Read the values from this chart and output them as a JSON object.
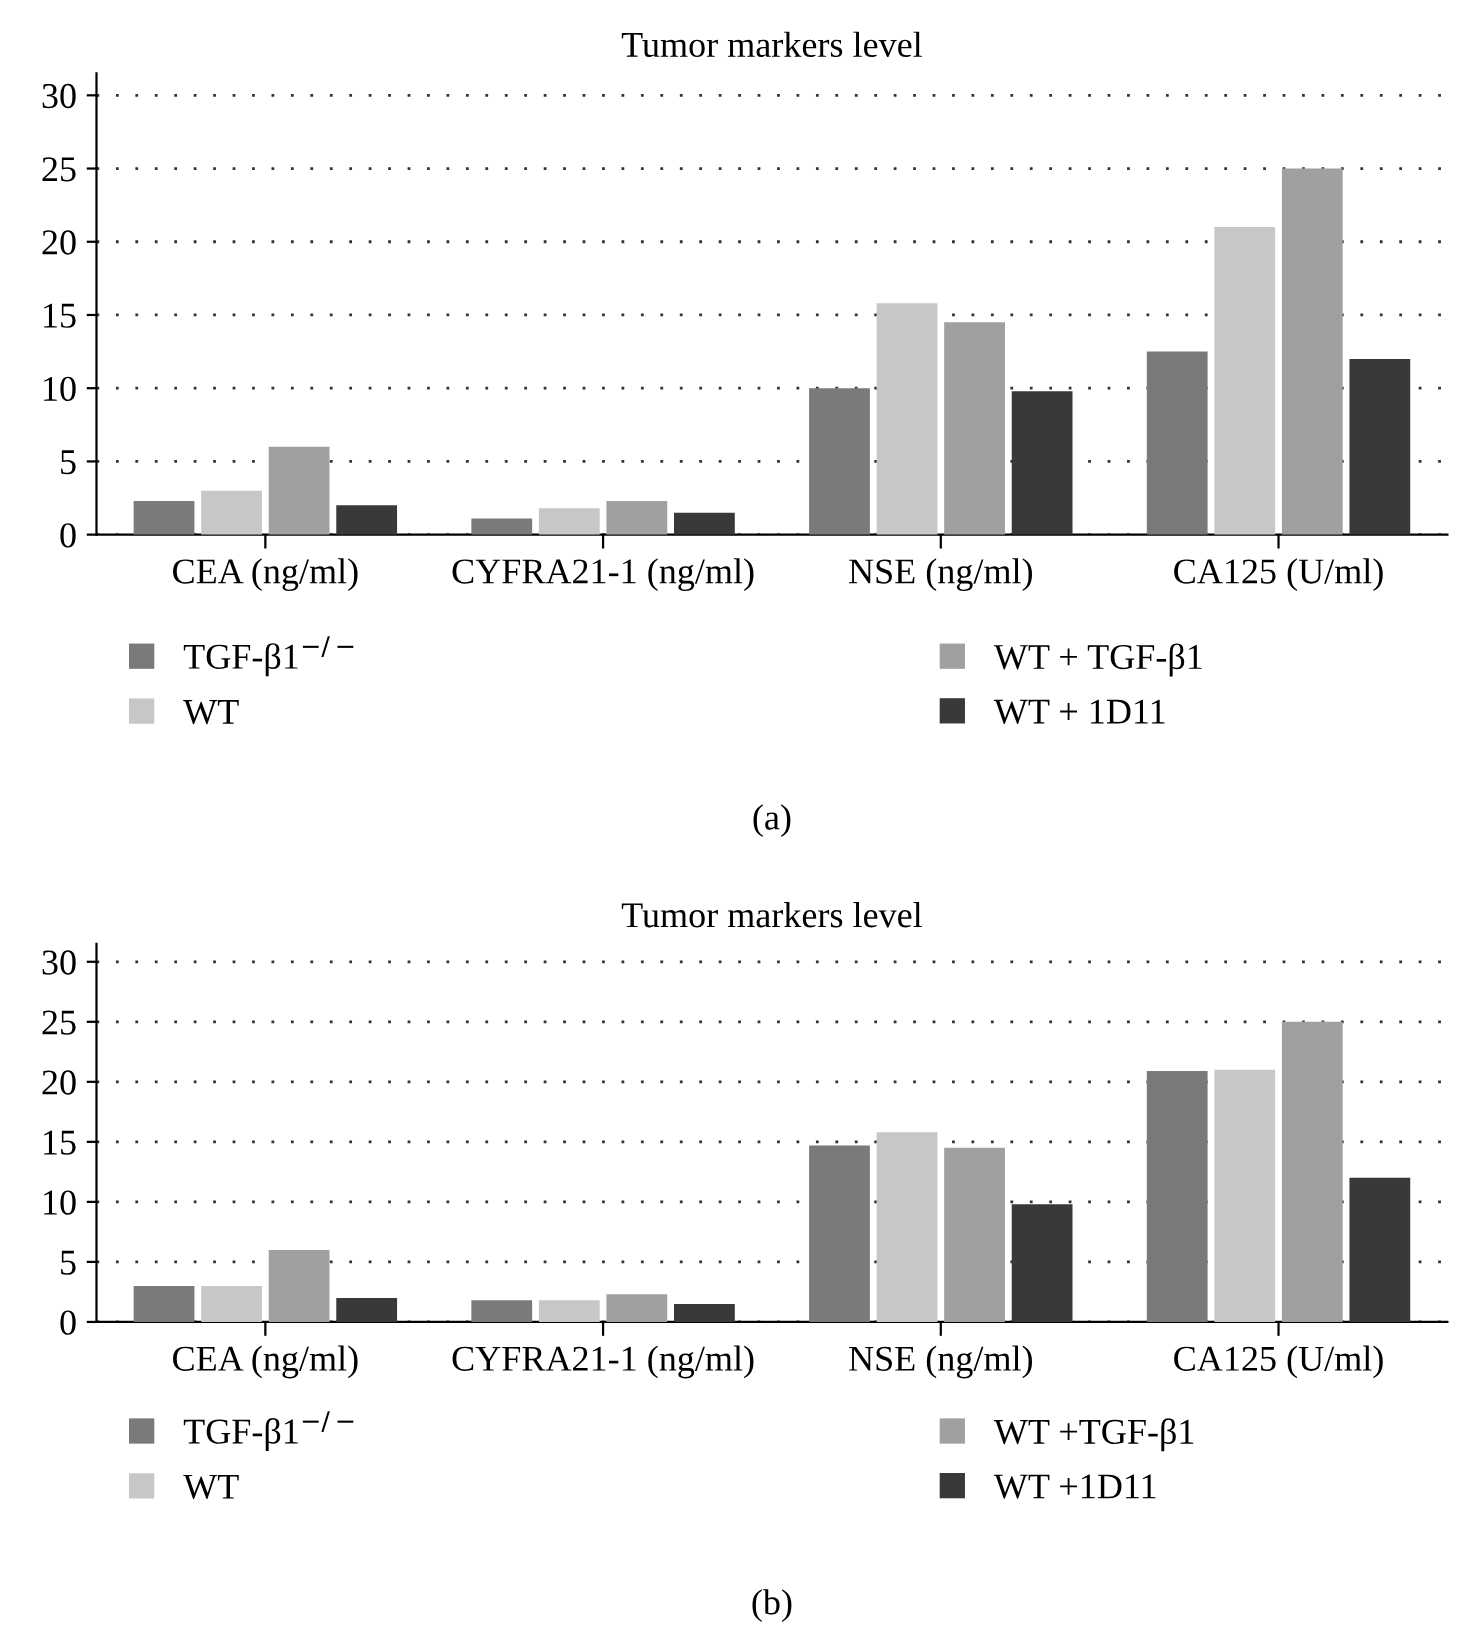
{
  "chart_data": [
    {
      "type": "bar",
      "title": "Tumor markers level",
      "categories": [
        "CEA (ng/ml)",
        "CYFRA21-1 (ng/ml)",
        "NSE (ng/ml)",
        "CA125 (U/ml)"
      ],
      "series": [
        {
          "name": "TGF-β1$^{−/−}$",
          "color": "#7a7a7a",
          "values": [
            2.3,
            1.1,
            10.0,
            12.5
          ]
        },
        {
          "name": "WT",
          "color": "#c6c7c6",
          "values": [
            3.0,
            1.8,
            15.8,
            21.0
          ]
        },
        {
          "name": "WT + TGF-β1",
          "color": "#a0a0a0",
          "values": [
            6.0,
            2.3,
            14.5,
            25.0
          ]
        },
        {
          "name": "WT + 1D11",
          "color": "#393939",
          "values": [
            2.0,
            1.5,
            9.8,
            12.0
          ]
        }
      ],
      "ylim": [
        0,
        31.5
      ],
      "yticks": [
        0,
        5,
        10,
        15,
        20,
        25,
        30
      ],
      "grid": "y",
      "legend": "bottom",
      "annotations": [
        "(a)"
      ]
    },
    {
      "type": "bar",
      "title": "Tumor markers level",
      "categories": [
        "CEA (ng/ml)",
        "CYFRA21-1 (ng/ml)",
        "NSE (ng/ml)",
        "CA125 (U/ml)"
      ],
      "series": [
        {
          "name": "TGF-β1$^{−/−}$",
          "color": "#7a7a7a",
          "values": [
            3.0,
            1.8,
            14.7,
            20.9
          ]
        },
        {
          "name": "WT",
          "color": "#c6c7c6",
          "values": [
            3.0,
            1.8,
            15.8,
            21.0
          ]
        },
        {
          "name": "WT +TGF-β1",
          "color": "#a0a0a0",
          "values": [
            6.0,
            2.3,
            14.5,
            25.0
          ]
        },
        {
          "name": "WT +1D11",
          "color": "#393939",
          "values": [
            2.0,
            1.5,
            9.8,
            12.0
          ]
        }
      ],
      "ylim": [
        0,
        31.5
      ],
      "yticks": [
        0,
        5,
        10,
        15,
        20,
        25,
        30
      ],
      "grid": "y",
      "legend": "bottom",
      "annotations": [
        "(b)"
      ]
    }
  ]
}
